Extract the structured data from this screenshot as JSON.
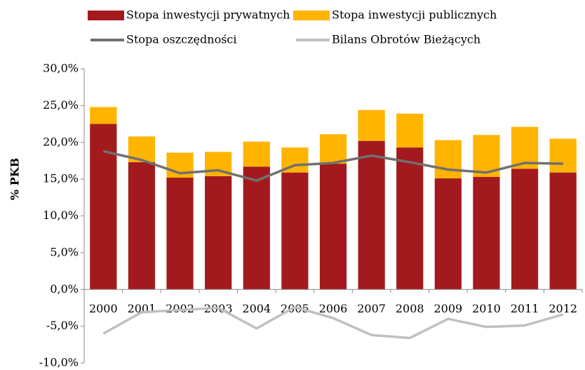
{
  "chart_data": {
    "type": "bar",
    "y_axis_label": "% PKB",
    "categories": [
      "2000",
      "2001",
      "2002",
      "2003",
      "2004",
      "2005",
      "2006",
      "2007",
      "2008",
      "2009",
      "2010",
      "2011",
      "2012"
    ],
    "series": [
      {
        "name": "Stopa inwestycji prywatnych",
        "color": "#a31a1e",
        "kind": "bar",
        "values": [
          22.5,
          17.3,
          15.2,
          15.4,
          16.7,
          15.9,
          17.1,
          20.2,
          19.3,
          15.1,
          15.3,
          16.4,
          15.9
        ]
      },
      {
        "name": "Stopa inwestycji publicznych",
        "color": "#ffb400",
        "kind": "bar",
        "values": [
          2.3,
          3.5,
          3.4,
          3.3,
          3.4,
          3.4,
          4.0,
          4.2,
          4.6,
          5.2,
          5.7,
          5.7,
          4.6
        ]
      },
      {
        "name": "Stopa oszczędności",
        "color": "#707070",
        "kind": "line",
        "values": [
          18.8,
          17.6,
          15.8,
          16.2,
          14.8,
          16.9,
          17.2,
          18.2,
          17.3,
          16.3,
          15.9,
          17.2,
          17.1
        ]
      },
      {
        "name": "Bilans Obrotów Bieżących",
        "color": "#c0c0c0",
        "kind": "line",
        "values": [
          -6.0,
          -3.1,
          -2.8,
          -2.5,
          -5.3,
          -2.4,
          -3.9,
          -6.2,
          -6.6,
          -4.0,
          -5.1,
          -4.9,
          -3.4
        ]
      }
    ],
    "stacked": true,
    "ylim": [
      -10,
      30
    ],
    "yticks": [
      {
        "value": -10,
        "label": "-10,0%"
      },
      {
        "value": -5,
        "label": "-5,0%"
      },
      {
        "value": 0,
        "label": "0,0%"
      },
      {
        "value": 5,
        "label": "5,0%"
      },
      {
        "value": 10,
        "label": "10,0%"
      },
      {
        "value": 15,
        "label": "15,0%"
      },
      {
        "value": 20,
        "label": "20,0%"
      },
      {
        "value": 25,
        "label": "25,0%"
      },
      {
        "value": 30,
        "label": "30,0%"
      }
    ],
    "grid": false,
    "legend": "top"
  }
}
